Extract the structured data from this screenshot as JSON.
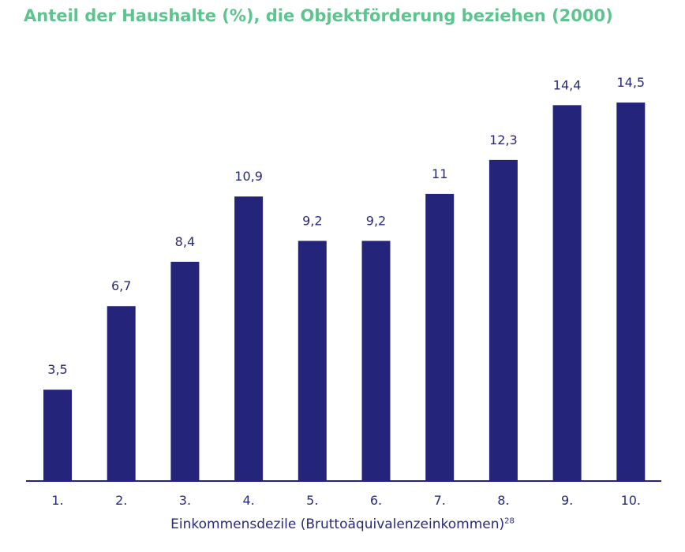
{
  "chart_data": {
    "type": "bar",
    "title": "Anteil der Haushalte (%), die Objektförderung beziehen (2000)",
    "xlabel": "Einkommensdezile (Bruttoäquivalenzeinkommen)",
    "xlabel_footnote": "28",
    "ylabel": "",
    "categories": [
      "1.",
      "2.",
      "3.",
      "4.",
      "5.",
      "6.",
      "7.",
      "8.",
      "9.",
      "10."
    ],
    "values": [
      3.5,
      6.7,
      8.4,
      10.9,
      9.2,
      9.2,
      11,
      12.3,
      14.4,
      14.5
    ],
    "value_labels": [
      "3,5",
      "6,7",
      "8,4",
      "10,9",
      "9,2",
      "9,2",
      "11",
      "12,3",
      "14,4",
      "14,5"
    ],
    "ylim": [
      0,
      16
    ],
    "grid": false,
    "legend": "none",
    "colors": {
      "bar": "#24247a",
      "title": "#5cc58f",
      "text": "#29297a"
    }
  }
}
